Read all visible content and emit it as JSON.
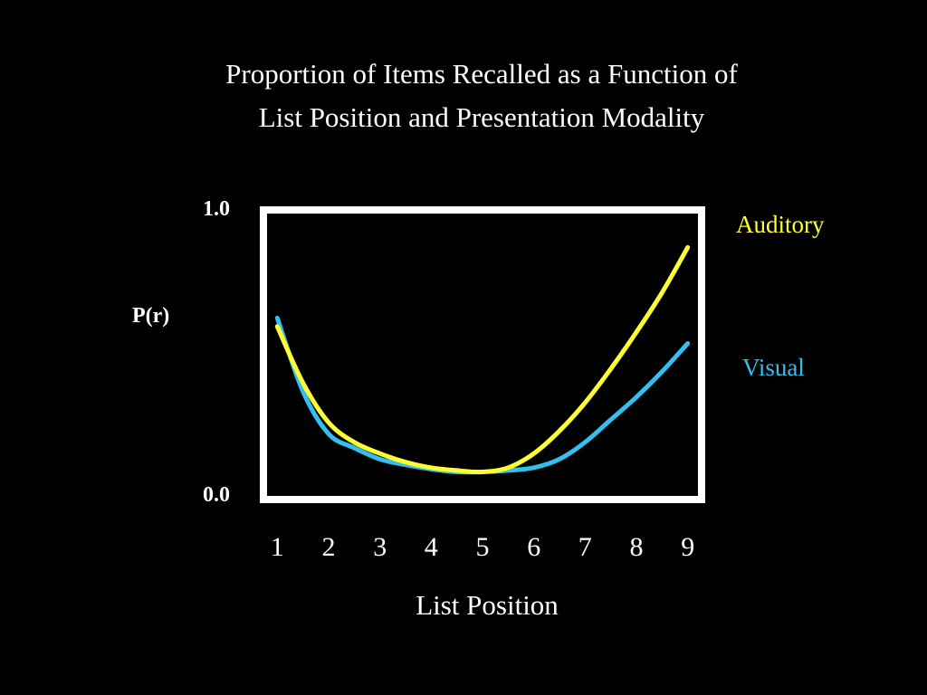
{
  "chart_data": {
    "type": "line",
    "title": "Proportion of Items Recalled as a Function of",
    "subtitle": "List Position and Presentation Modality",
    "xlabel": "List Position",
    "ylabel": "P(r)",
    "x": [
      1,
      1.5,
      2,
      2.5,
      3,
      3.5,
      4,
      4.5,
      5,
      5.5,
      6,
      6.5,
      7,
      7.5,
      8,
      8.5,
      9
    ],
    "ytick_labels": [
      "0.0",
      "1.0"
    ],
    "ylim": [
      0,
      1
    ],
    "xlim": [
      0.8,
      9.2
    ],
    "grid": false,
    "legend_placement": "right",
    "series": [
      {
        "name": "Auditory",
        "color": "#ffff33",
        "values": [
          0.6,
          0.4,
          0.26,
          0.19,
          0.15,
          0.12,
          0.1,
          0.09,
          0.085,
          0.1,
          0.15,
          0.23,
          0.33,
          0.45,
          0.58,
          0.72,
          0.88
        ]
      },
      {
        "name": "Visual",
        "color": "#33c0f0",
        "values": [
          0.63,
          0.37,
          0.22,
          0.17,
          0.13,
          0.11,
          0.095,
          0.085,
          0.085,
          0.09,
          0.1,
          0.13,
          0.19,
          0.27,
          0.35,
          0.44,
          0.54
        ]
      }
    ]
  }
}
